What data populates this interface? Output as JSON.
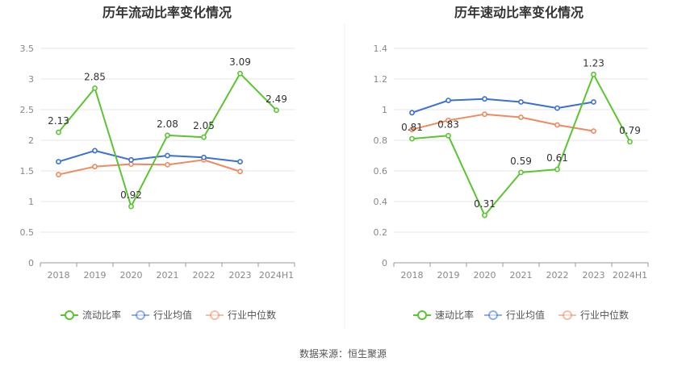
{
  "colors": {
    "company": "#5ac530",
    "industry_avg": "#3a6fd3",
    "industry_median": "#ee8a5e",
    "grid": "#e6e6e6",
    "axis": "#999999",
    "divider": "#eeeeee"
  },
  "source_text": "数据来源：恒生聚源",
  "chart_data": [
    {
      "type": "line",
      "title": "历年流动比率变化情况",
      "categories": [
        "2018",
        "2019",
        "2020",
        "2021",
        "2022",
        "2023",
        "2024H1"
      ],
      "ylim": [
        0,
        3.5
      ],
      "yticks": [
        "0",
        "0.5",
        "1",
        "1.5",
        "2",
        "2.5",
        "3",
        "3.5"
      ],
      "grid": true,
      "legend_position": "bottom",
      "series": [
        {
          "name": "流动比率",
          "color_key": "company",
          "labels": true,
          "values": [
            2.13,
            2.85,
            0.92,
            2.08,
            2.05,
            3.09,
            2.49
          ],
          "value_labels": [
            "2.13",
            "2.85",
            "0.92",
            "2.08",
            "2.05",
            "3.09",
            "2.49"
          ]
        },
        {
          "name": "行业均值",
          "color_key": "industry_avg",
          "values": [
            1.65,
            1.83,
            1.68,
            1.75,
            1.72,
            1.65,
            null
          ]
        },
        {
          "name": "行业中位数",
          "color_key": "industry_median",
          "values": [
            1.44,
            1.57,
            1.61,
            1.6,
            1.68,
            1.49,
            null
          ]
        }
      ]
    },
    {
      "type": "line",
      "title": "历年速动比率变化情况",
      "categories": [
        "2018",
        "2019",
        "2020",
        "2021",
        "2022",
        "2023",
        "2024H1"
      ],
      "ylim": [
        0,
        1.4
      ],
      "yticks": [
        "0",
        "0.2",
        "0.4",
        "0.6",
        "0.8",
        "1",
        "1.2",
        "1.4"
      ],
      "grid": true,
      "legend_position": "bottom",
      "series": [
        {
          "name": "速动比率",
          "color_key": "company",
          "labels": true,
          "values": [
            0.81,
            0.83,
            0.31,
            0.59,
            0.61,
            1.23,
            0.79
          ],
          "value_labels": [
            "0.81",
            "0.83",
            "0.31",
            "0.59",
            "0.61",
            "1.23",
            "0.79"
          ]
        },
        {
          "name": "行业均值",
          "color_key": "industry_avg",
          "values": [
            0.98,
            1.06,
            1.07,
            1.05,
            1.01,
            1.05,
            null
          ]
        },
        {
          "name": "行业中位数",
          "color_key": "industry_median",
          "values": [
            0.87,
            0.93,
            0.97,
            0.95,
            0.9,
            0.86,
            null
          ]
        }
      ]
    }
  ]
}
